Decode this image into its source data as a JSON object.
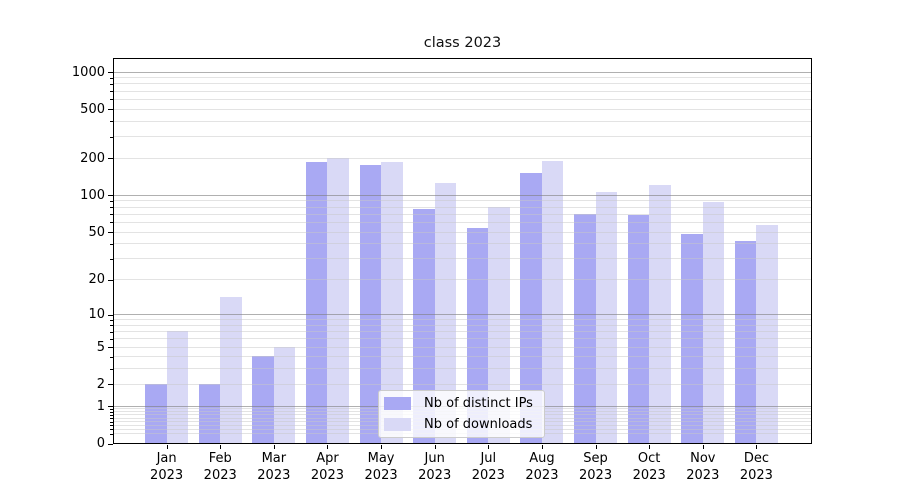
{
  "chart_data": {
    "type": "bar",
    "title": "class 2023",
    "categories": [
      {
        "line1": "Jan",
        "line2": "2023"
      },
      {
        "line1": "Feb",
        "line2": "2023"
      },
      {
        "line1": "Mar",
        "line2": "2023"
      },
      {
        "line1": "Apr",
        "line2": "2023"
      },
      {
        "line1": "May",
        "line2": "2023"
      },
      {
        "line1": "Jun",
        "line2": "2023"
      },
      {
        "line1": "Jul",
        "line2": "2023"
      },
      {
        "line1": "Aug",
        "line2": "2023"
      },
      {
        "line1": "Sep",
        "line2": "2023"
      },
      {
        "line1": "Oct",
        "line2": "2023"
      },
      {
        "line1": "Nov",
        "line2": "2023"
      },
      {
        "line1": "Dec",
        "line2": "2023"
      }
    ],
    "series": [
      {
        "name": "Nb of distinct IPs",
        "color": "#a9a9f3",
        "values": [
          2,
          2,
          4,
          186,
          175,
          77,
          54,
          150,
          70,
          68,
          48,
          42
        ]
      },
      {
        "name": "Nb of downloads",
        "color": "#d9d9f6",
        "values": [
          7,
          14,
          5,
          200,
          186,
          125,
          79,
          190,
          106,
          120,
          88,
          57
        ]
      }
    ],
    "yscale": "log1p",
    "y_ticks": [
      0,
      1,
      2,
      5,
      10,
      20,
      50,
      100,
      200,
      500,
      1000
    ],
    "ylim": [
      0,
      1286
    ],
    "xlabel": "",
    "ylabel": "",
    "grid": {
      "major_color": "#808080",
      "minor_color": "#c8c8c8",
      "major_lines_at": [
        1,
        10,
        100,
        1000
      ]
    },
    "legend": {
      "position": "lower-center"
    }
  }
}
